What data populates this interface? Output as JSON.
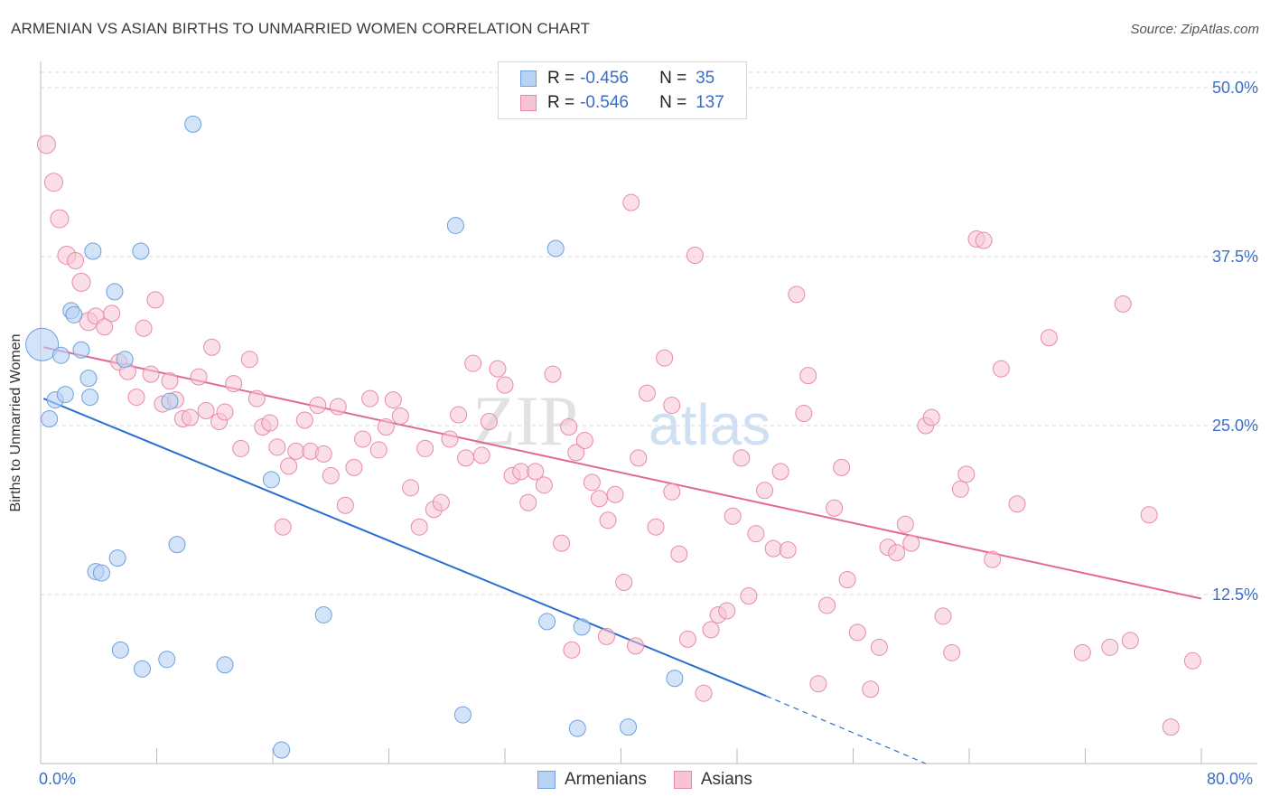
{
  "title": "ARMENIAN VS ASIAN BIRTHS TO UNMARRIED WOMEN CORRELATION CHART",
  "source": "Source: ZipAtlas.com",
  "watermark": {
    "zip": "ZIP",
    "atlas": "atlas"
  },
  "colors": {
    "armenian_fill": "#b7d2f3",
    "armenian_stroke": "#6f9fde",
    "armenian_line": "#2b6fd1",
    "asian_fill": "#f7c4d3",
    "asian_stroke": "#e88aa8",
    "asian_line": "#e06a93",
    "axis_label": "#3a6fc6",
    "grid": "#d9d9d9"
  },
  "legend": {
    "rows": [
      {
        "r_label": "R =",
        "r_value": "-0.456",
        "n_label": "N =",
        "n_value": "35"
      },
      {
        "r_label": "R =",
        "r_value": "-0.546",
        "n_label": "N =",
        "n_value": "137"
      }
    ]
  },
  "bottom_legend": {
    "armenians": "Armenians",
    "asians": "Asians"
  },
  "chart_data": {
    "type": "scatter",
    "title": "ARMENIAN VS ASIAN BIRTHS TO UNMARRIED WOMEN CORRELATION CHART",
    "xlabel": "",
    "ylabel": "Births to Unmarried Women",
    "xlim": [
      0,
      80
    ],
    "ylim": [
      0,
      50
    ],
    "x_tick_labels": [
      "0.0%",
      "80.0%"
    ],
    "y_tick_labels": [
      "12.5%",
      "25.0%",
      "37.5%",
      "50.0%"
    ],
    "y_ticks": [
      12.5,
      25.0,
      37.5,
      50.0
    ],
    "series": [
      {
        "name": "Armenians",
        "r": -0.456,
        "n": 35,
        "trend": {
          "x0": 0.2,
          "y0": 27.0,
          "x1": 50.0,
          "y1": 5.0,
          "dash_x1": 61.0,
          "dash_y1": 0.0
        },
        "points": [
          [
            0.1,
            31.0,
            18
          ],
          [
            0.6,
            25.5,
            9
          ],
          [
            1.0,
            26.9,
            9
          ],
          [
            1.4,
            30.2,
            9
          ],
          [
            1.7,
            27.3,
            9
          ],
          [
            2.1,
            33.5,
            9
          ],
          [
            2.3,
            33.2,
            9
          ],
          [
            2.8,
            30.6,
            9
          ],
          [
            3.3,
            28.5,
            9
          ],
          [
            3.4,
            27.1,
            9
          ],
          [
            3.6,
            37.9,
            9
          ],
          [
            5.1,
            34.9,
            9
          ],
          [
            5.8,
            29.9,
            9
          ],
          [
            6.9,
            37.9,
            9
          ],
          [
            10.5,
            47.3,
            9
          ],
          [
            8.9,
            26.8,
            9
          ],
          [
            9.4,
            16.2,
            9
          ],
          [
            3.8,
            14.2,
            9
          ],
          [
            4.2,
            14.1,
            9
          ],
          [
            5.3,
            15.2,
            9
          ],
          [
            5.5,
            8.4,
            9
          ],
          [
            7.0,
            7.0,
            9
          ],
          [
            8.7,
            7.7,
            9
          ],
          [
            12.7,
            7.3,
            9
          ],
          [
            15.9,
            21.0,
            9
          ],
          [
            19.5,
            11.0,
            9
          ],
          [
            16.6,
            1.0,
            9
          ],
          [
            28.6,
            39.8,
            9
          ],
          [
            35.5,
            38.1,
            9
          ],
          [
            34.9,
            10.5,
            9
          ],
          [
            37.3,
            10.1,
            9
          ],
          [
            29.1,
            3.6,
            9
          ],
          [
            37.0,
            2.6,
            9
          ],
          [
            40.5,
            2.7,
            9
          ],
          [
            43.7,
            6.3,
            9
          ]
        ]
      },
      {
        "name": "Asians",
        "r": -0.546,
        "n": 137,
        "trend": {
          "x0": 0.2,
          "y0": 30.8,
          "x1": 80.0,
          "y1": 12.2
        },
        "points": [
          [
            0.4,
            45.8,
            10
          ],
          [
            0.9,
            43.0,
            10
          ],
          [
            1.3,
            40.3,
            10
          ],
          [
            1.8,
            37.6,
            10
          ],
          [
            2.4,
            37.2,
            9
          ],
          [
            2.8,
            35.6,
            10
          ],
          [
            3.3,
            32.7,
            10
          ],
          [
            3.8,
            33.1,
            9
          ],
          [
            4.4,
            32.3,
            9
          ],
          [
            4.9,
            33.3,
            9
          ],
          [
            5.4,
            29.7,
            9
          ],
          [
            6.0,
            29.0,
            9
          ],
          [
            6.6,
            27.1,
            9
          ],
          [
            7.1,
            32.2,
            9
          ],
          [
            7.6,
            28.8,
            9
          ],
          [
            7.9,
            34.3,
            9
          ],
          [
            8.4,
            26.6,
            9
          ],
          [
            8.9,
            28.3,
            9
          ],
          [
            9.3,
            26.9,
            9
          ],
          [
            9.8,
            25.5,
            9
          ],
          [
            10.3,
            25.6,
            9
          ],
          [
            10.9,
            28.6,
            9
          ],
          [
            11.4,
            26.1,
            9
          ],
          [
            11.8,
            30.8,
            9
          ],
          [
            12.3,
            25.3,
            9
          ],
          [
            12.7,
            26.0,
            9
          ],
          [
            13.3,
            28.1,
            9
          ],
          [
            13.8,
            23.3,
            9
          ],
          [
            14.4,
            29.9,
            9
          ],
          [
            14.9,
            27.0,
            9
          ],
          [
            15.3,
            24.9,
            9
          ],
          [
            15.8,
            25.2,
            9
          ],
          [
            16.3,
            23.4,
            9
          ],
          [
            16.7,
            17.5,
            9
          ],
          [
            17.1,
            22.0,
            9
          ],
          [
            17.6,
            23.1,
            9
          ],
          [
            18.2,
            25.4,
            9
          ],
          [
            18.6,
            23.1,
            9
          ],
          [
            19.1,
            26.5,
            9
          ],
          [
            19.5,
            22.9,
            9
          ],
          [
            20.0,
            21.3,
            9
          ],
          [
            20.5,
            26.4,
            9
          ],
          [
            21.0,
            19.1,
            9
          ],
          [
            21.6,
            21.9,
            9
          ],
          [
            22.2,
            24.0,
            9
          ],
          [
            22.7,
            27.0,
            9
          ],
          [
            23.3,
            23.2,
            9
          ],
          [
            23.8,
            24.9,
            9
          ],
          [
            24.3,
            26.9,
            9
          ],
          [
            24.8,
            25.7,
            9
          ],
          [
            25.5,
            20.4,
            9
          ],
          [
            26.1,
            17.5,
            9
          ],
          [
            26.5,
            23.3,
            9
          ],
          [
            27.1,
            18.8,
            9
          ],
          [
            27.6,
            19.3,
            9
          ],
          [
            28.2,
            24.0,
            9
          ],
          [
            28.8,
            25.8,
            9
          ],
          [
            29.3,
            22.6,
            9
          ],
          [
            29.8,
            29.6,
            9
          ],
          [
            30.4,
            22.8,
            9
          ],
          [
            30.9,
            25.3,
            9
          ],
          [
            31.5,
            29.2,
            9
          ],
          [
            32.0,
            28.0,
            9
          ],
          [
            32.5,
            21.3,
            9
          ],
          [
            33.1,
            21.6,
            9
          ],
          [
            33.6,
            19.3,
            9
          ],
          [
            34.1,
            21.6,
            9
          ],
          [
            34.7,
            20.6,
            9
          ],
          [
            35.3,
            28.8,
            9
          ],
          [
            35.9,
            16.3,
            9
          ],
          [
            36.4,
            24.9,
            9
          ],
          [
            36.9,
            23.0,
            9
          ],
          [
            37.5,
            23.9,
            9
          ],
          [
            38.0,
            20.8,
            9
          ],
          [
            38.5,
            19.6,
            9
          ],
          [
            39.1,
            18.0,
            9
          ],
          [
            39.6,
            19.9,
            9
          ],
          [
            40.2,
            13.4,
            9
          ],
          [
            40.7,
            41.5,
            9
          ],
          [
            41.2,
            22.6,
            9
          ],
          [
            41.8,
            27.4,
            9
          ],
          [
            36.6,
            8.4,
            9
          ],
          [
            39.0,
            9.4,
            9
          ],
          [
            41.0,
            8.7,
            9
          ],
          [
            42.4,
            17.5,
            9
          ],
          [
            43.0,
            30.0,
            9
          ],
          [
            43.5,
            20.1,
            9
          ],
          [
            44.0,
            15.5,
            9
          ],
          [
            44.6,
            9.2,
            9
          ],
          [
            45.1,
            37.6,
            9
          ],
          [
            45.7,
            5.2,
            9
          ],
          [
            46.2,
            9.9,
            9
          ],
          [
            46.7,
            11.0,
            9
          ],
          [
            47.3,
            11.3,
            9
          ],
          [
            47.7,
            18.3,
            9
          ],
          [
            48.3,
            22.6,
            9
          ],
          [
            48.8,
            12.4,
            9
          ],
          [
            49.3,
            17.0,
            9
          ],
          [
            49.9,
            20.2,
            9
          ],
          [
            50.5,
            15.9,
            9
          ],
          [
            51.0,
            21.6,
            9
          ],
          [
            51.5,
            15.8,
            9
          ],
          [
            52.1,
            34.7,
            9
          ],
          [
            52.6,
            25.9,
            9
          ],
          [
            52.9,
            28.7,
            9
          ],
          [
            53.6,
            5.9,
            9
          ],
          [
            54.2,
            11.7,
            9
          ],
          [
            54.7,
            18.9,
            9
          ],
          [
            55.2,
            21.9,
            9
          ],
          [
            55.6,
            13.6,
            9
          ],
          [
            56.3,
            9.7,
            9
          ],
          [
            57.2,
            5.5,
            9
          ],
          [
            57.8,
            8.6,
            9
          ],
          [
            58.4,
            16.0,
            9
          ],
          [
            59.0,
            15.6,
            9
          ],
          [
            59.6,
            17.7,
            9
          ],
          [
            60.0,
            16.3,
            9
          ],
          [
            61.0,
            25.0,
            9
          ],
          [
            61.4,
            25.6,
            9
          ],
          [
            62.2,
            10.9,
            9
          ],
          [
            62.8,
            8.2,
            9
          ],
          [
            63.4,
            20.3,
            9
          ],
          [
            63.8,
            21.4,
            9
          ],
          [
            64.5,
            38.8,
            9
          ],
          [
            65.0,
            38.7,
            9
          ],
          [
            65.6,
            15.1,
            9
          ],
          [
            66.2,
            29.2,
            9
          ],
          [
            67.3,
            19.2,
            9
          ],
          [
            69.5,
            31.5,
            9
          ],
          [
            71.8,
            8.2,
            9
          ],
          [
            73.7,
            8.6,
            9
          ],
          [
            74.6,
            34.0,
            9
          ],
          [
            75.1,
            9.1,
            9
          ],
          [
            76.4,
            18.4,
            9
          ],
          [
            77.9,
            2.7,
            9
          ],
          [
            79.4,
            7.6,
            9
          ],
          [
            43.5,
            26.5,
            9
          ]
        ]
      }
    ]
  }
}
